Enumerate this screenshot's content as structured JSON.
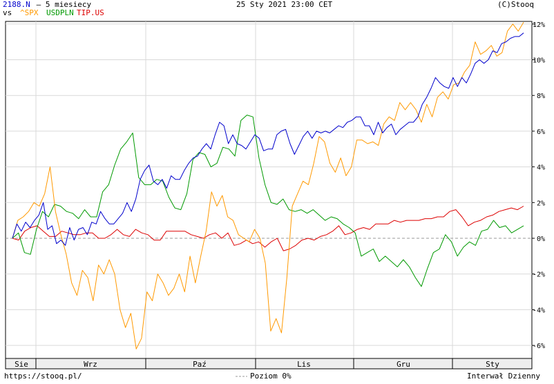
{
  "header": {
    "symbol": "2188.N",
    "period": " – 5 miesiecy",
    "datetime": "25 Sty 2021 23:00 CET",
    "copyright": "(C)Stooq",
    "vs_label": "vs",
    "compare": [
      "^SPX",
      "USDPLN",
      "TIP.US"
    ]
  },
  "footer": {
    "url": "https://stooq.pl/",
    "zero_level": "Poziom 0%",
    "interval": "Interwał Dzienny"
  },
  "colors": {
    "main": "#0000cc",
    "spx": "#ff9900",
    "usdpln": "#009900",
    "tip": "#dd0000",
    "grid": "#d9d9d9",
    "zero": "#999999"
  },
  "chart_data": {
    "type": "line",
    "x_axis_labels": [
      "Sie",
      "Wrz",
      "Paź",
      "Lis",
      "Gru",
      "Sty"
    ],
    "y_ticks": [
      "12%",
      "10%",
      "8%",
      "6%",
      "4%",
      "2%",
      "0%",
      "-2%",
      "-4%",
      "-6%"
    ],
    "ylim": [
      -6.5,
      12.3
    ],
    "grid": true,
    "series": [
      {
        "name": "2188.N",
        "values": [
          0,
          0.8,
          0.4,
          0.9,
          0.6,
          1.0,
          1.3,
          2.0,
          0.5,
          0.7,
          -0.3,
          -0.1,
          -0.4,
          0.6,
          -0.1,
          0.5,
          0.6,
          0.2,
          0.9,
          0.8,
          1.5,
          1.1,
          0.8,
          0.8,
          1.1,
          1.4,
          2.0,
          1.5,
          2.2,
          3.3,
          3.8,
          4.1,
          3.2,
          3.0,
          3.3,
          2.8,
          3.5,
          3.3,
          3.3,
          3.8,
          4.2,
          4.5,
          4.6,
          5.0,
          5.3,
          5.0,
          5.8,
          6.5,
          6.3,
          5.3,
          5.8,
          5.3,
          5.2,
          5.0,
          5.4,
          5.8,
          5.6,
          4.9,
          5.0,
          5.0,
          5.8,
          6.0,
          6.1,
          5.3,
          4.7,
          5.2,
          5.7,
          6.0,
          5.6,
          6.0,
          5.9,
          6.0,
          5.9,
          6.1,
          6.3,
          6.2,
          6.5,
          6.6,
          6.8,
          6.8,
          6.3,
          6.3,
          5.8,
          6.5,
          5.9,
          6.2,
          6.4,
          5.8,
          6.1,
          6.3,
          6.5,
          6.5,
          6.8,
          7.5,
          7.9,
          8.4,
          9.0,
          8.7,
          8.5,
          8.4,
          9.0,
          8.5,
          9.0,
          8.7,
          9.2,
          9.8,
          10.0,
          9.8,
          10.0,
          10.5,
          10.4,
          10.9,
          11.0,
          11.2,
          11.3,
          11.3,
          11.5
        ],
        "color": "#0000cc"
      },
      {
        "name": "^SPX",
        "values": [
          0,
          1.0,
          1.2,
          1.5,
          2.0,
          1.8,
          2.5,
          4.0,
          1.5,
          0.2,
          -0.9,
          -2.5,
          -3.2,
          -1.8,
          -2.2,
          -3.5,
          -1.5,
          -2.0,
          -1.2,
          -2.0,
          -4.0,
          -5.0,
          -4.2,
          -6.2,
          -5.6,
          -3.0,
          -3.5,
          -2.0,
          -2.5,
          -3.2,
          -2.8,
          -2.0,
          -3.0,
          -1.0,
          -2.5,
          -1.0,
          0.4,
          2.6,
          1.8,
          2.4,
          1.2,
          1.0,
          0.2,
          0,
          -0.2,
          0.5,
          0,
          -1.4,
          -5.2,
          -4.5,
          -5.3,
          -2.2,
          1.8,
          2.5,
          3.2,
          3.0,
          4.2,
          5.7,
          5.4,
          4.2,
          3.7,
          4.5,
          3.5,
          4.0,
          5.5,
          5.5,
          5.3,
          5.4,
          5.2,
          6.4,
          6.8,
          6.6,
          7.6,
          7.2,
          7.6,
          7.2,
          6.5,
          7.5,
          6.8,
          7.9,
          8.2,
          7.8,
          8.6,
          8.7,
          9.3,
          9.7,
          11.0,
          10.3,
          10.5,
          10.8,
          10.2,
          10.4,
          11.6,
          12.0,
          11.6,
          12.1
        ],
        "color": "#ff9900"
      },
      {
        "name": "USDPLN",
        "values": [
          0,
          0.3,
          -0.8,
          -0.9,
          0.5,
          1.5,
          1.2,
          1.9,
          1.8,
          1.5,
          1.4,
          1.1,
          1.6,
          1.2,
          1.2,
          2.6,
          3.0,
          4.1,
          5.0,
          5.4,
          5.9,
          3.4,
          3.0,
          3.0,
          3.3,
          3.2,
          2.3,
          1.7,
          1.6,
          2.5,
          4.4,
          4.8,
          4.7,
          4.0,
          4.2,
          5.1,
          5.0,
          4.6,
          6.6,
          6.9,
          6.8,
          4.5,
          3.0,
          2.0,
          1.9,
          2.2,
          1.6,
          1.5,
          1.6,
          1.4,
          1.6,
          1.3,
          1.0,
          1.2,
          1.1,
          0.8,
          0.6,
          0.3,
          -1.0,
          -0.8,
          -0.6,
          -1.3,
          -1.0,
          -1.3,
          -1.6,
          -1.2,
          -1.6,
          -2.2,
          -2.7,
          -1.7,
          -0.8,
          -0.6,
          0.2,
          -0.2,
          -1.0,
          -0.5,
          -0.2,
          -0.4,
          0.4,
          0.5,
          1.0,
          0.6,
          0.7,
          0.3,
          0.5,
          0.7
        ],
        "color": "#009900"
      },
      {
        "name": "TIP.US",
        "values": [
          0,
          -0.1,
          0.4,
          0.6,
          0.7,
          0.4,
          0.1,
          0.1,
          0.4,
          0.3,
          0.2,
          0.2,
          0.3,
          0.3,
          0,
          0,
          0.2,
          0.5,
          0.2,
          0.1,
          0.5,
          0.3,
          0.2,
          -0.1,
          -0.1,
          0.4,
          0.4,
          0.4,
          0.4,
          0.2,
          0.1,
          0,
          0.2,
          0.3,
          0,
          0.3,
          -0.4,
          -0.3,
          -0.1,
          -0.3,
          -0.2,
          -0.5,
          -0.2,
          0,
          -0.7,
          -0.6,
          -0.4,
          -0.1,
          0,
          -0.1,
          0.1,
          0.2,
          0.4,
          0.7,
          0.2,
          0.3,
          0.5,
          0.6,
          0.5,
          0.8,
          0.8,
          0.8,
          1.0,
          0.9,
          1.0,
          1.0,
          1.0,
          1.1,
          1.1,
          1.2,
          1.2,
          1.5,
          1.6,
          1.2,
          0.7,
          0.9,
          1.0,
          1.2,
          1.3,
          1.5,
          1.6,
          1.7,
          1.6,
          1.8
        ],
        "color": "#dd0000"
      }
    ]
  }
}
